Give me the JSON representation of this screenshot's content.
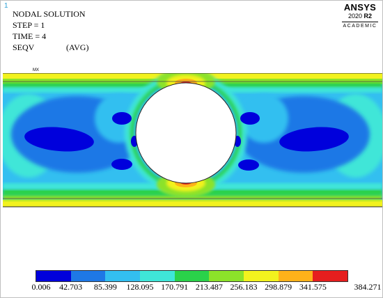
{
  "window_number": "1",
  "info": {
    "line1": "NODAL SOLUTION",
    "line2": "STEP = 1",
    "line3": "TIME = 4",
    "line4_a": "SEQV",
    "line4_b": "(AVG)"
  },
  "logo": {
    "brand": "ANSYS",
    "version_year": "2020",
    "version_release": "R2",
    "edition": "ACADEMIC"
  },
  "marker_label": "MX",
  "legend": {
    "colors": [
      "#0000dc",
      "#1e78e6",
      "#33bff0",
      "#3fe6d8",
      "#2ad24a",
      "#8ce22a",
      "#f2f21e",
      "#ffb21a",
      "#e61e1e"
    ],
    "ticks": [
      "0.006",
      "42.703",
      "85.399",
      "128.095",
      "170.791",
      "213.487",
      "256.183",
      "298.879",
      "341.575",
      "384.271"
    ]
  }
}
